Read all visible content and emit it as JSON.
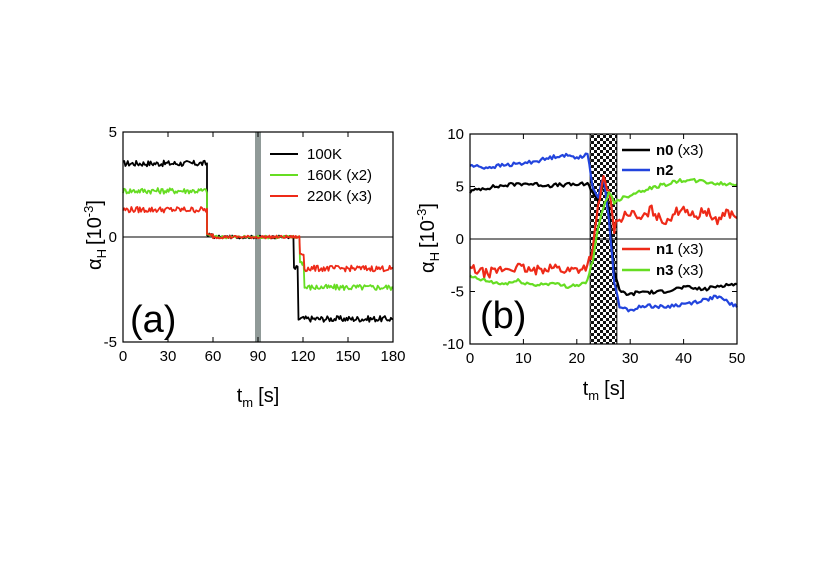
{
  "chart_data": [
    {
      "type": "line",
      "panel_label": "(a)",
      "xlabel_main": "t",
      "xlabel_sub": "m",
      "xlabel_unit": "[s]",
      "ylabel_main": "α",
      "ylabel_sub": "H",
      "ylabel_unit": "[10",
      "ylabel_exp": "-3",
      "ylabel_close": "]",
      "xlim": [
        0,
        180
      ],
      "ylim": [
        -5,
        5
      ],
      "xticks": [
        0,
        30,
        60,
        90,
        120,
        150,
        180
      ],
      "yticks": [
        -5,
        0,
        5
      ],
      "zero_line": true,
      "legend_position": "top-right",
      "shaded_band": {
        "x0": 88,
        "x1": 92,
        "color": "#909a98"
      },
      "series": [
        {
          "name": "100K",
          "color": "#000000",
          "segments": [
            {
              "from": 0,
              "to": 56,
              "level": 3.5
            },
            {
              "from": 56,
              "to": 60,
              "level": 0.1
            },
            {
              "from": 60,
              "to": 114,
              "level": 0.0
            },
            {
              "from": 114,
              "to": 117,
              "level": -1.5
            },
            {
              "from": 117,
              "to": 180,
              "level": -3.9
            }
          ]
        },
        {
          "name": "160K (x2)",
          "color": "#66dd22",
          "segments": [
            {
              "from": 0,
              "to": 56,
              "level": 2.2
            },
            {
              "from": 56,
              "to": 60,
              "level": 0.1
            },
            {
              "from": 60,
              "to": 118,
              "level": 0.0
            },
            {
              "from": 118,
              "to": 121,
              "level": -1.2
            },
            {
              "from": 121,
              "to": 180,
              "level": -2.4
            }
          ]
        },
        {
          "name": "220K (x3)",
          "color": "#ee2a18",
          "segments": [
            {
              "from": 0,
              "to": 56,
              "level": 1.3
            },
            {
              "from": 56,
              "to": 60,
              "level": 0.1
            },
            {
              "from": 60,
              "to": 118,
              "level": 0.0
            },
            {
              "from": 118,
              "to": 121,
              "level": -0.8
            },
            {
              "from": 121,
              "to": 180,
              "level": -1.5
            }
          ]
        }
      ]
    },
    {
      "type": "line",
      "panel_label": "(b)",
      "xlabel_main": "t",
      "xlabel_sub": "m",
      "xlabel_unit": "[s]",
      "ylabel_main": "α",
      "ylabel_sub": "H",
      "ylabel_unit": "[10",
      "ylabel_exp": "-3",
      "ylabel_close": "]",
      "xlim": [
        0,
        50
      ],
      "ylim": [
        -10,
        10
      ],
      "xticks": [
        0,
        10,
        20,
        30,
        40,
        50
      ],
      "yticks": [
        -10,
        -5,
        0,
        5,
        10
      ],
      "zero_line": true,
      "legend_position": "top-right and middle-right",
      "hatched_band": {
        "x0": 22.5,
        "x1": 27.5
      },
      "series": [
        {
          "name": "n0 (x3)",
          "bold": "n0",
          "rest": " (x3)",
          "color": "#000000",
          "points": [
            [
              0,
              4.5
            ],
            [
              2,
              4.8
            ],
            [
              5,
              5.0
            ],
            [
              8,
              5.2
            ],
            [
              10,
              5.3
            ],
            [
              15,
              5.1
            ],
            [
              20,
              5.2
            ],
            [
              22,
              5.2
            ],
            [
              23,
              4.5
            ],
            [
              24,
              3.5
            ],
            [
              25,
              5.5
            ],
            [
              26,
              3.0
            ],
            [
              27,
              -3.0
            ],
            [
              28,
              -5.0
            ],
            [
              30,
              -5.3
            ],
            [
              32,
              -5.0
            ],
            [
              35,
              -5.1
            ],
            [
              38,
              -4.8
            ],
            [
              40,
              -4.6
            ],
            [
              44,
              -4.8
            ],
            [
              47,
              -4.4
            ],
            [
              50,
              -4.3
            ]
          ]
        },
        {
          "name": "n2",
          "bold": "n2",
          "rest": "",
          "color": "#2244dd",
          "points": [
            [
              0,
              7.0
            ],
            [
              3,
              6.8
            ],
            [
              6,
              7.0
            ],
            [
              10,
              7.2
            ],
            [
              14,
              7.6
            ],
            [
              17,
              8.0
            ],
            [
              20,
              7.8
            ],
            [
              22,
              8.0
            ],
            [
              23,
              5.0
            ],
            [
              24,
              4.0
            ],
            [
              25,
              6.0
            ],
            [
              26,
              2.0
            ],
            [
              27,
              -4.0
            ],
            [
              28,
              -6.5
            ],
            [
              30,
              -6.8
            ],
            [
              33,
              -6.3
            ],
            [
              36,
              -6.5
            ],
            [
              40,
              -6.2
            ],
            [
              44,
              -5.8
            ],
            [
              46,
              -5.5
            ],
            [
              48,
              -5.9
            ],
            [
              50,
              -6.5
            ]
          ]
        },
        {
          "name": "n1 (x3)",
          "bold": "n1",
          "rest": " (x3)",
          "color": "#ee2a18",
          "points": [
            [
              0,
              -2.8
            ],
            [
              3,
              -3.3
            ],
            [
              6,
              -2.9
            ],
            [
              9,
              -2.7
            ],
            [
              12,
              -3.1
            ],
            [
              15,
              -2.6
            ],
            [
              18,
              -3.0
            ],
            [
              21,
              -2.8
            ],
            [
              22,
              -2.5
            ],
            [
              23,
              -1.0
            ],
            [
              24,
              3.0
            ],
            [
              25,
              5.8
            ],
            [
              26,
              4.5
            ],
            [
              27,
              1.0
            ],
            [
              28,
              2.0
            ],
            [
              30,
              2.5
            ],
            [
              32,
              1.8
            ],
            [
              34,
              2.8
            ],
            [
              36,
              1.6
            ],
            [
              38,
              2.3
            ],
            [
              40,
              3.1
            ],
            [
              42,
              2.0
            ],
            [
              44,
              2.8
            ],
            [
              46,
              1.7
            ],
            [
              48,
              2.6
            ],
            [
              50,
              2.0
            ]
          ]
        },
        {
          "name": "n3 (x3)",
          "bold": "n3",
          "rest": " (x3)",
          "color": "#66dd22",
          "points": [
            [
              0,
              -3.6
            ],
            [
              3,
              -4.0
            ],
            [
              6,
              -4.3
            ],
            [
              9,
              -4.0
            ],
            [
              12,
              -4.4
            ],
            [
              15,
              -4.2
            ],
            [
              18,
              -4.5
            ],
            [
              21,
              -4.3
            ],
            [
              22,
              -4.0
            ],
            [
              23,
              -2.0
            ],
            [
              24,
              1.0
            ],
            [
              25,
              3.0
            ],
            [
              26,
              4.5
            ],
            [
              27,
              3.5
            ],
            [
              28,
              3.8
            ],
            [
              30,
              4.2
            ],
            [
              32,
              4.6
            ],
            [
              35,
              5.0
            ],
            [
              38,
              5.4
            ],
            [
              40,
              5.6
            ],
            [
              43,
              5.5
            ],
            [
              46,
              5.3
            ],
            [
              48,
              5.2
            ],
            [
              50,
              5.2
            ]
          ]
        }
      ]
    }
  ]
}
